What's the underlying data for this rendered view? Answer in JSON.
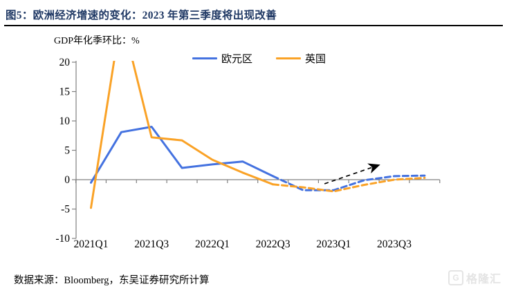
{
  "figure": {
    "title": "图5：欧洲经济增速的变化：2023 年第三季度将出现改善",
    "axis_note": "GDP年化季环比：%",
    "source": "数据来源：Bloomberg，东吴证券研究所计算",
    "brand": {
      "icon_letter": "G",
      "name": "格隆汇"
    }
  },
  "chart_data": {
    "type": "line",
    "title": "图5：欧洲经济增速的变化：2023 年第三季度将出现改善",
    "ylabel": "GDP年化季环比：%",
    "x": [
      "2021Q1",
      "2021Q2",
      "2021Q3",
      "2021Q4",
      "2022Q1",
      "2022Q2",
      "2022Q3",
      "2022Q4",
      "2023Q1",
      "2023Q2",
      "2023Q3",
      "2023Q4"
    ],
    "x_tick_labels": [
      "2021Q1",
      "2021Q3",
      "2022Q1",
      "2022Q3",
      "2023Q1",
      "2023Q3"
    ],
    "ylim": [
      -10,
      20
    ],
    "yticks": [
      20,
      15,
      10,
      5,
      0,
      -5,
      -10
    ],
    "grid": false,
    "legend_position": "top",
    "series": [
      {
        "name": "欧元区",
        "color": "#4472E0",
        "values": [
          -0.5,
          8.1,
          9.0,
          2.0,
          2.6,
          3.1,
          0.6,
          -1.8,
          -1.8,
          -0.1,
          0.6,
          0.7
        ],
        "forecast_from_index": 6,
        "forecast_style": "dashed"
      },
      {
        "name": "英国",
        "color": "#FAA226",
        "values": [
          -4.8,
          28,
          7.2,
          6.7,
          3.4,
          1.2,
          -0.8,
          -1.3,
          -2.0,
          -0.9,
          0.0,
          0.3
        ],
        "forecast_from_index": 6,
        "forecast_style": "dashed",
        "note": "2021Q2 value exceeds axis max 20 and is clipped in the plot"
      }
    ],
    "annotation_arrow": {
      "from": {
        "xi": 8.2,
        "v": -0.7
      },
      "to": {
        "xi": 10.0,
        "v": 2.5
      },
      "style": "dashed",
      "color": "#000000"
    }
  }
}
